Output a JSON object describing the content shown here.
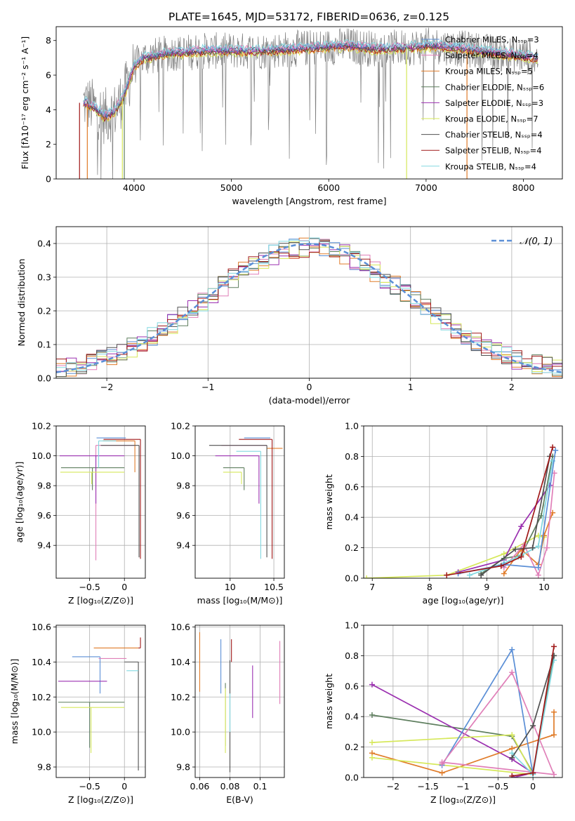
{
  "title": "PLATE=1645, MJD=53172, FIBERID=0636, z=0.125",
  "colors": {
    "c0": "#808080",
    "c1": "#5b8fd6",
    "c2": "#e07c2a",
    "c3": "#5f7f5f",
    "c4": "#9b30b0",
    "c5": "#d6e85a",
    "c6": "#505050",
    "c7": "#a01818",
    "c8": "#82d8e0",
    "c9": "#e07fb8"
  },
  "chart_data": [
    {
      "id": "spectrum",
      "type": "line",
      "xlabel": "wavelength [Angstrom, rest frame]",
      "ylabel": "Flux [fλ10⁻¹⁷ erg cm⁻² s⁻¹ A⁻¹]",
      "xlim": [
        3200,
        8400
      ],
      "ylim": [
        0,
        8.8
      ],
      "xticks": [
        4000,
        5000,
        6000,
        7000,
        8000
      ],
      "yticks": [
        0,
        2,
        4,
        6,
        8
      ],
      "legend_position": "top-right",
      "legend": [
        {
          "label": "Chabrier MILES, Nₛₛₚ=3",
          "color": "c1"
        },
        {
          "label": "Salpeter MILES, Nₛₛₚ=4",
          "color": "c9"
        },
        {
          "label": "Kroupa MILES, Nₛₛₚ=5",
          "color": "c2"
        },
        {
          "label": "Chabrier ELODIE, Nₛₛₚ=6",
          "color": "c3"
        },
        {
          "label": "Salpeter ELODIE, Nₛₛₚ=3",
          "color": "c4"
        },
        {
          "label": "Kroupa ELODIE, Nₛₛₚ=7",
          "color": "c5"
        },
        {
          "label": "Chabrier STELIB, Nₛₛₚ=4",
          "color": "c6"
        },
        {
          "label": "Salpeter STELIB, Nₛₛₚ=4",
          "color": "c7"
        },
        {
          "label": "Kroupa STELIB, Nₛₛₚ=4",
          "color": "c8"
        }
      ],
      "model_continuum": {
        "x": [
          3500,
          3600,
          3700,
          3800,
          3900,
          4000,
          4100,
          4200,
          4300,
          4400,
          4500,
          4700,
          5000,
          5300,
          5600,
          5900,
          6200,
          6500,
          6800,
          7100,
          7400,
          7700,
          8000,
          8150
        ],
        "y": [
          4.4,
          4.1,
          3.6,
          3.9,
          4.9,
          6.5,
          7.0,
          7.1,
          7.2,
          7.3,
          7.3,
          7.4,
          7.4,
          7.4,
          7.5,
          7.6,
          7.7,
          7.5,
          7.6,
          7.7,
          7.5,
          7.3,
          7.1,
          7.0
        ]
      },
      "data_noise_amplitude": 1.2,
      "dropouts": [
        {
          "x": 3440,
          "color": "c7"
        },
        {
          "x": 3520,
          "color": "c2"
        },
        {
          "x": 3880,
          "color": "c5"
        },
        {
          "x": 3900,
          "color": "c3"
        },
        {
          "x": 6800,
          "color": "c5"
        },
        {
          "x": 7420,
          "color": "c2"
        }
      ]
    },
    {
      "id": "residuals",
      "type": "step",
      "xlabel": "(data-model)/error",
      "ylabel": "Normed distribution",
      "xlim": [
        -2.5,
        2.5
      ],
      "ylim": [
        0,
        0.45
      ],
      "xticks": [
        -2,
        -1,
        0,
        1,
        2
      ],
      "yticks": [
        0.0,
        0.1,
        0.2,
        0.3,
        0.4
      ],
      "bin_width": 0.1,
      "reference_label": "𝒩(0, 1)",
      "reference_color": "c1",
      "legend_position": "top-right",
      "series_colors": [
        "c1",
        "c9",
        "c2",
        "c3",
        "c4",
        "c5",
        "c6",
        "c7",
        "c8"
      ]
    },
    {
      "id": "age-vs-Z",
      "type": "errorbar",
      "xlabel": "Z [log₁₀(Z/Z⊙)]",
      "ylabel": "age  [log₁₀(age/yr)]",
      "xlim": [
        -0.98,
        0.3
      ],
      "ylim": [
        9.18,
        10.2
      ],
      "xticks": [
        -0.5,
        0.0
      ],
      "yticks": [
        9.4,
        9.6,
        9.8,
        10.0,
        10.2
      ],
      "points": [
        {
          "color": "c1",
          "x": 0.02,
          "y": 10.12,
          "xerr": [
            0.42,
            0.0
          ],
          "yerr": [
            0.0,
            0.0
          ]
        },
        {
          "color": "c9",
          "x": -0.41,
          "y": 10.07,
          "xerr": [
            0.0,
            0.55
          ],
          "yerr": [
            0.77,
            0.0
          ]
        },
        {
          "color": "c2",
          "x": 0.15,
          "y": 10.1,
          "xerr": [
            0.46,
            0.0
          ],
          "yerr": [
            0.21,
            0.0
          ]
        },
        {
          "color": "c3",
          "x": -0.46,
          "y": 9.92,
          "xerr": [
            0.45,
            0.46
          ],
          "yerr": [
            0.15,
            0.0
          ]
        },
        {
          "color": "c4",
          "x": -0.41,
          "y": 10.0,
          "xerr": [
            0.52,
            0.41
          ],
          "yerr": [
            0.32,
            0.0
          ]
        },
        {
          "color": "c5",
          "x": -0.47,
          "y": 9.89,
          "xerr": [
            0.45,
            0.47
          ],
          "yerr": [
            0.08,
            0.0
          ]
        },
        {
          "color": "c6",
          "x": 0.21,
          "y": 10.07,
          "xerr": [
            0.55,
            0.0
          ],
          "yerr": [
            0.75,
            0.0
          ]
        },
        {
          "color": "c7",
          "x": 0.23,
          "y": 10.11,
          "xerr": [
            0.53,
            0.0
          ],
          "yerr": [
            0.8,
            0.0
          ]
        },
        {
          "color": "c8",
          "x": -0.37,
          "y": 10.1,
          "xerr": [
            0.0,
            0.25
          ],
          "yerr": [
            0.18,
            0.0
          ]
        }
      ]
    },
    {
      "id": "age-vs-mass",
      "type": "errorbar",
      "xlabel": "mass [log₁₀(M/M⊙)]",
      "ylabel": "",
      "xlim": [
        9.6,
        10.62
      ],
      "ylim": [
        9.18,
        10.2
      ],
      "xticks": [
        10.0,
        10.5
      ],
      "yticks": [
        9.4,
        9.6,
        9.8,
        10.0,
        10.2
      ],
      "points": [
        {
          "color": "c1",
          "x": 10.46,
          "y": 10.12,
          "xerr": [
            0.3,
            0.0
          ],
          "yerr": [
            0.0,
            0.0
          ]
        },
        {
          "color": "c9",
          "x": 10.42,
          "y": 10.07,
          "xerr": [
            0.52,
            0.0
          ],
          "yerr": [
            0.0,
            0.0
          ]
        },
        {
          "color": "c2",
          "x": 10.48,
          "y": 10.05,
          "xerr": [
            0.06,
            0.12
          ],
          "yerr": [
            0.0,
            0.0
          ]
        },
        {
          "color": "c3",
          "x": 10.16,
          "y": 9.92,
          "xerr": [
            0.24,
            0.0
          ],
          "yerr": [
            0.15,
            0.0
          ]
        },
        {
          "color": "c4",
          "x": 10.33,
          "y": 10.0,
          "xerr": [
            0.5,
            0.0
          ],
          "yerr": [
            0.32,
            0.0
          ]
        },
        {
          "color": "c5",
          "x": 10.13,
          "y": 9.89,
          "xerr": [
            0.21,
            0.0
          ],
          "yerr": [
            0.08,
            0.0
          ]
        },
        {
          "color": "c6",
          "x": 10.42,
          "y": 10.07,
          "xerr": [
            0.66,
            0.0
          ],
          "yerr": [
            0.75,
            0.0
          ]
        },
        {
          "color": "c7",
          "x": 10.48,
          "y": 10.11,
          "xerr": [
            0.38,
            0.0
          ],
          "yerr": [
            0.8,
            0.0
          ]
        },
        {
          "color": "c8",
          "x": 10.35,
          "y": 10.03,
          "xerr": [
            0.28,
            0.0
          ],
          "yerr": [
            0.72,
            0.0
          ]
        }
      ]
    },
    {
      "id": "weight-vs-age",
      "type": "line",
      "xlabel": "age  [log₁₀(age/yr)]",
      "ylabel": "mass weight",
      "xlim": [
        6.85,
        10.32
      ],
      "ylim": [
        0,
        1.0
      ],
      "xticks": [
        7,
        8,
        9,
        10
      ],
      "yticks": [
        0.0,
        0.2,
        0.4,
        0.6,
        0.8,
        1.0
      ],
      "series": [
        {
          "color": "c5",
          "x": [
            6.9,
            8.3,
            9.3,
            9.9,
            10.0
          ],
          "y": [
            0.0,
            0.02,
            0.16,
            0.28,
            0.27
          ]
        },
        {
          "color": "c4",
          "x": [
            8.5,
            9.3,
            9.6,
            10.1
          ],
          "y": [
            0.04,
            0.12,
            0.34,
            0.61
          ]
        },
        {
          "color": "c3",
          "x": [
            8.9,
            9.3,
            9.6,
            9.95,
            10.15
          ],
          "y": [
            0.03,
            0.13,
            0.15,
            0.41,
            0.8
          ]
        },
        {
          "color": "c2",
          "x": [
            9.3,
            9.6,
            9.9,
            10.0,
            10.15
          ],
          "y": [
            0.03,
            0.19,
            0.09,
            0.28,
            0.43
          ]
        },
        {
          "color": "c9",
          "x": [
            9.3,
            9.65,
            9.9,
            10.05,
            10.18
          ],
          "y": [
            0.07,
            0.22,
            0.02,
            0.2,
            0.69
          ]
        },
        {
          "color": "c8",
          "x": [
            8.7,
            9.3,
            9.55,
            9.9,
            10.15
          ],
          "y": [
            0.02,
            0.1,
            0.14,
            0.21,
            0.77
          ]
        },
        {
          "color": "c1",
          "x": [
            8.5,
            9.3,
            9.9,
            10.2
          ],
          "y": [
            0.03,
            0.09,
            0.07,
            0.84
          ]
        },
        {
          "color": "c6",
          "x": [
            8.9,
            9.5,
            9.8,
            10.1
          ],
          "y": [
            0.02,
            0.19,
            0.2,
            0.8
          ]
        },
        {
          "color": "c7",
          "x": [
            8.3,
            9.25,
            9.6,
            10.15
          ],
          "y": [
            0.02,
            0.08,
            0.14,
            0.86
          ]
        }
      ]
    },
    {
      "id": "mass-vs-Z",
      "type": "errorbar",
      "xlabel": "Z [log₁₀(Z/Z⊙)]",
      "ylabel": "mass [log₁₀(M/M⊙)]",
      "xlim": [
        -0.98,
        0.3
      ],
      "ylim": [
        9.74,
        10.61
      ],
      "xticks": [
        -0.5,
        0.0
      ],
      "yticks": [
        9.8,
        10.0,
        10.2,
        10.4,
        10.6
      ],
      "points": [
        {
          "color": "c1",
          "x": -0.35,
          "y": 10.43,
          "xerr": [
            0.4,
            0.0
          ],
          "yerr": [
            0.21,
            0.0
          ]
        },
        {
          "color": "c9",
          "x": -0.37,
          "y": 10.42,
          "xerr": [
            0.0,
            0.4
          ],
          "yerr": [
            0.0,
            0.0
          ]
        },
        {
          "color": "c2",
          "x": 0.2,
          "y": 10.48,
          "xerr": [
            0.64,
            0.0
          ],
          "yerr": [
            0.0,
            0.0
          ]
        },
        {
          "color": "c3",
          "x": -0.5,
          "y": 10.17,
          "xerr": [
            0.45,
            0.5
          ],
          "yerr": [
            0.26,
            0.0
          ]
        },
        {
          "color": "c4",
          "x": -0.4,
          "y": 10.29,
          "xerr": [
            0.55,
            0.15
          ],
          "yerr": [
            0.0,
            0.0
          ]
        },
        {
          "color": "c5",
          "x": -0.48,
          "y": 10.14,
          "xerr": [
            0.43,
            0.48
          ],
          "yerr": [
            0.26,
            0.0
          ]
        },
        {
          "color": "c6",
          "x": 0.2,
          "y": 10.4,
          "xerr": [
            0.2,
            0.0
          ],
          "yerr": [
            0.62,
            0.0
          ]
        },
        {
          "color": "c7",
          "x": 0.23,
          "y": 10.48,
          "xerr": [
            0.03,
            0.0
          ],
          "yerr": [
            0.0,
            0.06
          ]
        },
        {
          "color": "c8",
          "x": 0.2,
          "y": 10.35,
          "xerr": [
            0.17,
            0.0
          ],
          "yerr": [
            0.0,
            0.0
          ]
        }
      ]
    },
    {
      "id": "mass-vs-ebv",
      "type": "errorbar",
      "xlabel": "E(B-V)",
      "ylabel": "",
      "xlim": [
        0.057,
        0.116
      ],
      "ylim": [
        9.74,
        10.61
      ],
      "xticks": [
        0.06,
        0.08,
        0.1
      ],
      "yticks": [
        9.8,
        10.0,
        10.2,
        10.4,
        10.6
      ],
      "points": [
        {
          "color": "c1",
          "x": 0.074,
          "y": 10.4,
          "xerr": [
            0.0,
            0.0
          ],
          "yerr": [
            0.18,
            0.13
          ]
        },
        {
          "color": "c9",
          "x": 0.113,
          "y": 10.3,
          "xerr": [
            0.0,
            0.0
          ],
          "yerr": [
            0.14,
            0.22
          ]
        },
        {
          "color": "c2",
          "x": 0.06,
          "y": 10.4,
          "xerr": [
            0.0,
            0.0
          ],
          "yerr": [
            0.17,
            0.17
          ]
        },
        {
          "color": "c3",
          "x": 0.077,
          "y": 10.1,
          "xerr": [
            0.0,
            0.0
          ],
          "yerr": [
            0.18,
            0.18
          ]
        },
        {
          "color": "c4",
          "x": 0.095,
          "y": 10.23,
          "xerr": [
            0.0,
            0.0
          ],
          "yerr": [
            0.15,
            0.15
          ]
        },
        {
          "color": "c5",
          "x": 0.077,
          "y": 10.05,
          "xerr": [
            0.0,
            0.0
          ],
          "yerr": [
            0.17,
            0.2
          ]
        },
        {
          "color": "c6",
          "x": 0.08,
          "y": 10.1,
          "xerr": [
            0.0,
            0.0
          ],
          "yerr": [
            0.33,
            0.31
          ]
        },
        {
          "color": "c7",
          "x": 0.081,
          "y": 10.45,
          "xerr": [
            0.0,
            0.0
          ],
          "yerr": [
            0.05,
            0.08
          ]
        },
        {
          "color": "c8",
          "x": 0.08,
          "y": 10.1,
          "xerr": [
            0.0,
            0.0
          ],
          "yerr": [
            0.1,
            0.12
          ]
        }
      ]
    },
    {
      "id": "weight-vs-Z",
      "type": "line",
      "xlabel": "Z [log₁₀(Z/Z⊙)]",
      "ylabel": "mass weight",
      "xlim": [
        -2.42,
        0.42
      ],
      "ylim": [
        0,
        1.0
      ],
      "xticks": [
        -2.0,
        -1.5,
        -1.0,
        -0.5,
        0.0
      ],
      "yticks": [
        0.0,
        0.2,
        0.4,
        0.6,
        0.8,
        1.0
      ],
      "series": [
        {
          "color": "c3",
          "x": [
            -2.3,
            -0.3,
            0.0,
            0.3
          ],
          "y": [
            0.41,
            0.27,
            0.03,
            0.8
          ]
        },
        {
          "color": "c4",
          "x": [
            -2.3,
            -0.3,
            0.0,
            -0.28
          ],
          "y": [
            0.61,
            0.12,
            0.03,
            0.0
          ]
        },
        {
          "color": "c2",
          "x": [
            -2.3,
            -1.3,
            -0.3,
            0.3,
            0.3
          ],
          "y": [
            0.16,
            0.03,
            0.19,
            0.28,
            0.43
          ]
        },
        {
          "color": "c5",
          "x": [
            -2.3,
            -0.3,
            0.0,
            -2.3
          ],
          "y": [
            0.23,
            0.28,
            0.02,
            0.13
          ]
        },
        {
          "color": "c1",
          "x": [
            -1.3,
            -0.3,
            0.0
          ],
          "y": [
            0.08,
            0.84,
            0.02
          ]
        },
        {
          "color": "c9",
          "x": [
            -1.3,
            -0.3,
            0.3,
            -1.3
          ],
          "y": [
            0.09,
            0.69,
            0.02,
            0.1
          ]
        },
        {
          "color": "c8",
          "x": [
            -0.3,
            0.0,
            0.3
          ],
          "y": [
            0.16,
            0.02,
            0.77
          ]
        },
        {
          "color": "c6",
          "x": [
            -0.3,
            0.0,
            0.3
          ],
          "y": [
            0.13,
            0.34,
            0.8
          ]
        },
        {
          "color": "c7",
          "x": [
            -0.3,
            0.0,
            0.3
          ],
          "y": [
            0.01,
            0.03,
            0.86
          ]
        }
      ]
    }
  ]
}
